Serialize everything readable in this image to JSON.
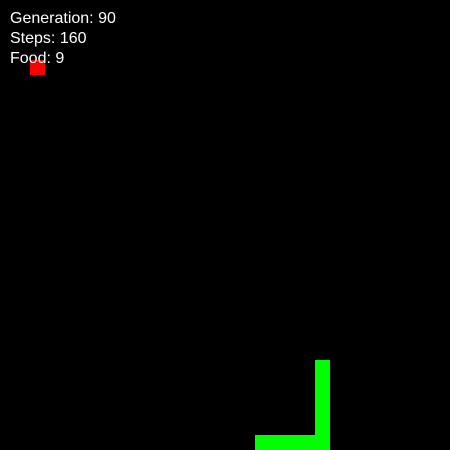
{
  "hud": {
    "generation_label": "Generation:",
    "generation_value": "90",
    "steps_label": "Steps:",
    "steps_value": "160",
    "food_label": "Food:",
    "food_value": "9"
  },
  "game": {
    "grid_cols": 30,
    "grid_rows": 30,
    "snake_color": "#00ff00",
    "food_color": "#ff0000",
    "background_color": "#000000",
    "text_color": "#ffffff",
    "food": {
      "col": 2,
      "row": 4
    },
    "snake": [
      {
        "col": 21,
        "row": 24
      },
      {
        "col": 21,
        "row": 25
      },
      {
        "col": 21,
        "row": 26
      },
      {
        "col": 21,
        "row": 27
      },
      {
        "col": 21,
        "row": 28
      },
      {
        "col": 21,
        "row": 29
      },
      {
        "col": 20,
        "row": 29
      },
      {
        "col": 19,
        "row": 29
      },
      {
        "col": 18,
        "row": 29
      },
      {
        "col": 17,
        "row": 29
      }
    ]
  }
}
